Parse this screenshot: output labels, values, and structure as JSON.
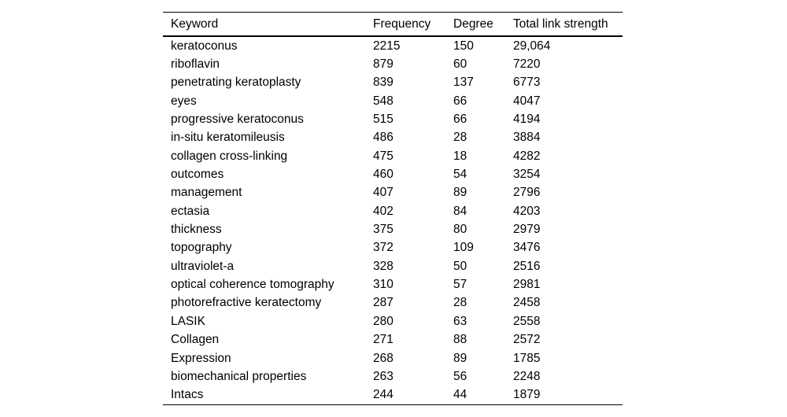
{
  "colors": {
    "background": "#ffffff",
    "text": "#000000",
    "rule": "#000000"
  },
  "table": {
    "columns": [
      "Keyword",
      "Frequency",
      "Degree",
      "Total link strength"
    ],
    "rows": [
      [
        "keratoconus",
        "2215",
        "150",
        "29,064"
      ],
      [
        "riboflavin",
        "879",
        "60",
        "7220"
      ],
      [
        "penetrating keratoplasty",
        "839",
        "137",
        "6773"
      ],
      [
        "eyes",
        "548",
        "66",
        "4047"
      ],
      [
        "progressive keratoconus",
        "515",
        "66",
        "4194"
      ],
      [
        "in-situ keratomileusis",
        "486",
        "28",
        "3884"
      ],
      [
        "collagen cross-linking",
        "475",
        "18",
        "4282"
      ],
      [
        "outcomes",
        "460",
        "54",
        "3254"
      ],
      [
        "management",
        "407",
        "89",
        "2796"
      ],
      [
        "ectasia",
        "402",
        "84",
        "4203"
      ],
      [
        "thickness",
        "375",
        "80",
        "2979"
      ],
      [
        "topography",
        "372",
        "109",
        "3476"
      ],
      [
        "ultraviolet-a",
        "328",
        "50",
        "2516"
      ],
      [
        "optical coherence tomography",
        "310",
        "57",
        "2981"
      ],
      [
        "photorefractive keratectomy",
        "287",
        "28",
        "2458"
      ],
      [
        "LASIK",
        "280",
        "63",
        "2558"
      ],
      [
        "Collagen",
        "271",
        "88",
        "2572"
      ],
      [
        "Expression",
        "268",
        "89",
        "1785"
      ],
      [
        "biomechanical properties",
        "263",
        "56",
        "2248"
      ],
      [
        "Intacs",
        "244",
        "44",
        "1879"
      ]
    ]
  },
  "chart_data": {
    "type": "table",
    "title": "",
    "columns": [
      "Keyword",
      "Frequency",
      "Degree",
      "Total link strength"
    ],
    "rows": [
      {
        "keyword": "keratoconus",
        "frequency": 2215,
        "degree": 150,
        "total_link_strength": 29064
      },
      {
        "keyword": "riboflavin",
        "frequency": 879,
        "degree": 60,
        "total_link_strength": 7220
      },
      {
        "keyword": "penetrating keratoplasty",
        "frequency": 839,
        "degree": 137,
        "total_link_strength": 6773
      },
      {
        "keyword": "eyes",
        "frequency": 548,
        "degree": 66,
        "total_link_strength": 4047
      },
      {
        "keyword": "progressive keratoconus",
        "frequency": 515,
        "degree": 66,
        "total_link_strength": 4194
      },
      {
        "keyword": "in-situ keratomileusis",
        "frequency": 486,
        "degree": 28,
        "total_link_strength": 3884
      },
      {
        "keyword": "collagen cross-linking",
        "frequency": 475,
        "degree": 18,
        "total_link_strength": 4282
      },
      {
        "keyword": "outcomes",
        "frequency": 460,
        "degree": 54,
        "total_link_strength": 3254
      },
      {
        "keyword": "management",
        "frequency": 407,
        "degree": 89,
        "total_link_strength": 2796
      },
      {
        "keyword": "ectasia",
        "frequency": 402,
        "degree": 84,
        "total_link_strength": 4203
      },
      {
        "keyword": "thickness",
        "frequency": 375,
        "degree": 80,
        "total_link_strength": 2979
      },
      {
        "keyword": "topography",
        "frequency": 372,
        "degree": 109,
        "total_link_strength": 3476
      },
      {
        "keyword": "ultraviolet-a",
        "frequency": 328,
        "degree": 50,
        "total_link_strength": 2516
      },
      {
        "keyword": "optical coherence tomography",
        "frequency": 310,
        "degree": 57,
        "total_link_strength": 2981
      },
      {
        "keyword": "photorefractive keratectomy",
        "frequency": 287,
        "degree": 28,
        "total_link_strength": 2458
      },
      {
        "keyword": "LASIK",
        "frequency": 280,
        "degree": 63,
        "total_link_strength": 2558
      },
      {
        "keyword": "Collagen",
        "frequency": 271,
        "degree": 88,
        "total_link_strength": 2572
      },
      {
        "keyword": "Expression",
        "frequency": 268,
        "degree": 89,
        "total_link_strength": 1785
      },
      {
        "keyword": "biomechanical properties",
        "frequency": 263,
        "degree": 56,
        "total_link_strength": 2248
      },
      {
        "keyword": "Intacs",
        "frequency": 244,
        "degree": 44,
        "total_link_strength": 1879
      }
    ]
  }
}
